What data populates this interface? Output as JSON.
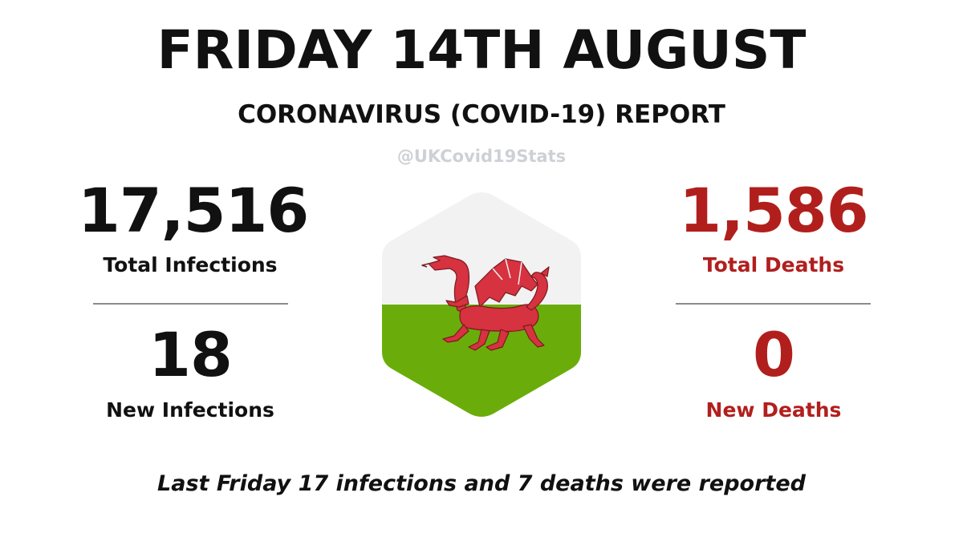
{
  "header": {
    "title": "FRIDAY 14TH AUGUST",
    "subtitle": "CORONAVIRUS (COVID-19) REPORT",
    "handle": "@UKCovid19Stats"
  },
  "infections": {
    "total_value": "17,516",
    "total_label": "Total Infections",
    "new_value": "18",
    "new_label": "New Infections"
  },
  "deaths": {
    "total_value": "1,586",
    "total_label": "Total Deaths",
    "new_value": "0",
    "new_label": "New Deaths"
  },
  "flag": {
    "icon": "welsh-dragon-flag-icon",
    "colors": {
      "white": "#f2f2f2",
      "green": "#6aad0a",
      "dragon": "#d7323f"
    }
  },
  "footer": {
    "comparison": "Last Friday 17 infections and 7 deaths were reported"
  },
  "colors": {
    "text": "#111111",
    "accent_red": "#b11f1d",
    "handle_gray": "#cdd1d6",
    "divider": "#8b8b8b"
  }
}
